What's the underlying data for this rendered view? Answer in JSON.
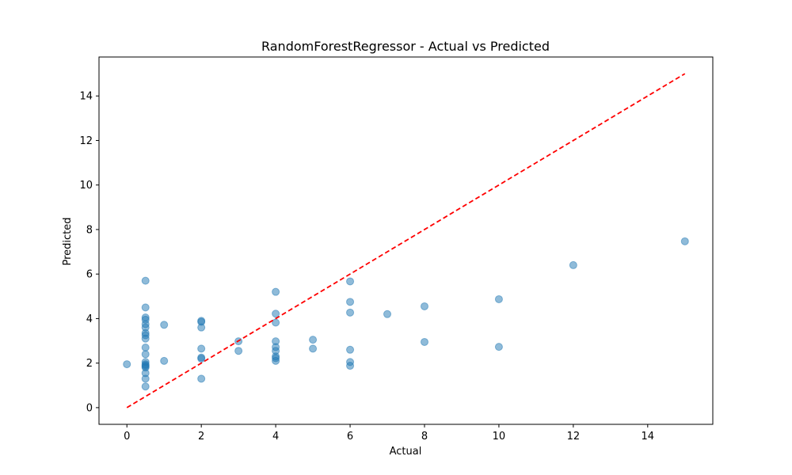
{
  "chart_data": {
    "type": "scatter",
    "title": "RandomForestRegressor - Actual vs Predicted",
    "xlabel": "Actual",
    "ylabel": "Predicted",
    "xlim": [
      -0.75,
      15.75
    ],
    "ylim": [
      -0.75,
      15.75
    ],
    "xticks": [
      0,
      2,
      4,
      6,
      8,
      10,
      12,
      14
    ],
    "yticks": [
      0,
      2,
      4,
      6,
      8,
      10,
      12,
      14
    ],
    "grid": false,
    "point_color": "#1f77b4",
    "reference_line": {
      "from": [
        0,
        0
      ],
      "to": [
        15,
        15
      ],
      "color": "#ff0000",
      "style": "dashed"
    },
    "points": [
      {
        "x": 0,
        "y": 1.95
      },
      {
        "x": 0.5,
        "y": 5.7
      },
      {
        "x": 0.5,
        "y": 4.5
      },
      {
        "x": 0.5,
        "y": 4.05
      },
      {
        "x": 0.5,
        "y": 3.95
      },
      {
        "x": 0.5,
        "y": 3.75
      },
      {
        "x": 0.5,
        "y": 3.6
      },
      {
        "x": 0.5,
        "y": 3.35
      },
      {
        "x": 0.5,
        "y": 3.25
      },
      {
        "x": 0.5,
        "y": 3.1
      },
      {
        "x": 0.5,
        "y": 2.7
      },
      {
        "x": 0.5,
        "y": 2.4
      },
      {
        "x": 0.5,
        "y": 2.05
      },
      {
        "x": 0.5,
        "y": 1.95
      },
      {
        "x": 0.5,
        "y": 1.9
      },
      {
        "x": 0.5,
        "y": 1.85
      },
      {
        "x": 0.5,
        "y": 1.8
      },
      {
        "x": 0.5,
        "y": 1.55
      },
      {
        "x": 0.5,
        "y": 1.3
      },
      {
        "x": 0.5,
        "y": 0.95
      },
      {
        "x": 1,
        "y": 3.72
      },
      {
        "x": 1,
        "y": 2.1
      },
      {
        "x": 2,
        "y": 3.9
      },
      {
        "x": 2,
        "y": 3.85
      },
      {
        "x": 2,
        "y": 3.6
      },
      {
        "x": 2,
        "y": 2.65
      },
      {
        "x": 2,
        "y": 2.25
      },
      {
        "x": 2,
        "y": 2.2
      },
      {
        "x": 2,
        "y": 1.3
      },
      {
        "x": 3,
        "y": 2.98
      },
      {
        "x": 3,
        "y": 2.55
      },
      {
        "x": 4,
        "y": 5.2
      },
      {
        "x": 4,
        "y": 4.22
      },
      {
        "x": 4,
        "y": 3.82
      },
      {
        "x": 4,
        "y": 2.98
      },
      {
        "x": 4,
        "y": 2.72
      },
      {
        "x": 4,
        "y": 2.55
      },
      {
        "x": 4,
        "y": 2.3
      },
      {
        "x": 4,
        "y": 2.22
      },
      {
        "x": 4,
        "y": 2.1
      },
      {
        "x": 5,
        "y": 3.05
      },
      {
        "x": 5,
        "y": 2.65
      },
      {
        "x": 6,
        "y": 5.67
      },
      {
        "x": 6,
        "y": 4.75
      },
      {
        "x": 6,
        "y": 4.27
      },
      {
        "x": 6,
        "y": 2.6
      },
      {
        "x": 6,
        "y": 2.05
      },
      {
        "x": 6,
        "y": 1.88
      },
      {
        "x": 7,
        "y": 4.2
      },
      {
        "x": 8,
        "y": 4.55
      },
      {
        "x": 8,
        "y": 2.95
      },
      {
        "x": 10,
        "y": 4.87
      },
      {
        "x": 10,
        "y": 2.73
      },
      {
        "x": 12,
        "y": 6.4
      },
      {
        "x": 15,
        "y": 7.47
      }
    ]
  }
}
